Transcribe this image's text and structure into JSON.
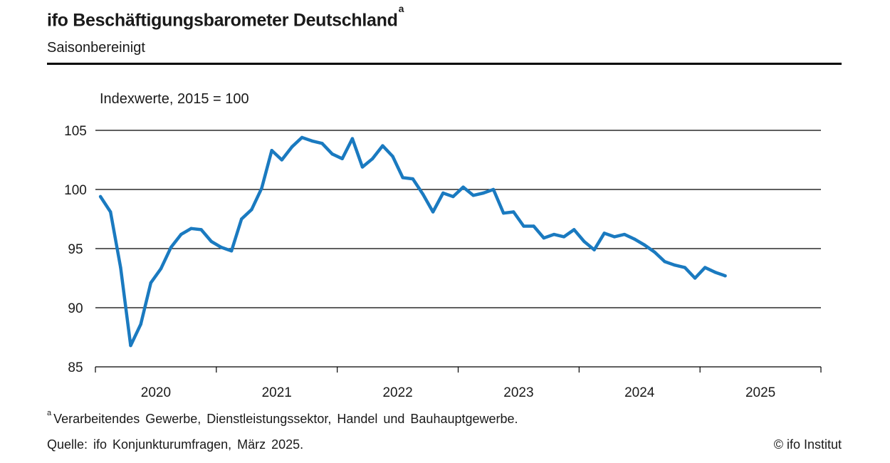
{
  "header": {
    "title": "ifo Beschäftigungsbarometer Deutschland",
    "title_marker": "a",
    "subtitle": "Saisonbereinigt"
  },
  "footer": {
    "footnote_marker": "a",
    "footnote": "Verarbeitendes Gewerbe, Dienstleistungssektor, Handel und Bauhauptgewerbe.",
    "source": "Quelle: ifo Konjunkturumfragen, März 2025.",
    "copyright": "© ifo Institut"
  },
  "colors": {
    "line": "#1a7ac0",
    "grid": "#000000",
    "text": "#1a1a1a"
  },
  "chart_data": {
    "type": "line",
    "unit_label": "Indexwerte, 2015 = 100",
    "ylim": [
      85,
      105
    ],
    "yticks": [
      85,
      90,
      95,
      100,
      105
    ],
    "grid": true,
    "x_start": "2020-01",
    "x_end_exclusive": "2026-01",
    "year_labels": [
      "2020",
      "2021",
      "2022",
      "2023",
      "2024",
      "2025"
    ],
    "series": [
      {
        "x": [
          "2020-01",
          "2020-02",
          "2020-03",
          "2020-04",
          "2020-05",
          "2020-06",
          "2020-07",
          "2020-08",
          "2020-09",
          "2020-10",
          "2020-11",
          "2020-12",
          "2021-01",
          "2021-02",
          "2021-03",
          "2021-04",
          "2021-05",
          "2021-06",
          "2021-07",
          "2021-08",
          "2021-09",
          "2021-10",
          "2021-11",
          "2021-12",
          "2022-01",
          "2022-02",
          "2022-03",
          "2022-04",
          "2022-05",
          "2022-06",
          "2022-07",
          "2022-08",
          "2022-09",
          "2022-10",
          "2022-11",
          "2022-12",
          "2023-01",
          "2023-02",
          "2023-03",
          "2023-04",
          "2023-05",
          "2023-06",
          "2023-07",
          "2023-08",
          "2023-09",
          "2023-10",
          "2023-11",
          "2023-12",
          "2024-01",
          "2024-02",
          "2024-03",
          "2024-04",
          "2024-05",
          "2024-06",
          "2024-07",
          "2024-08",
          "2024-09",
          "2024-10",
          "2024-11",
          "2024-12",
          "2025-01",
          "2025-02",
          "2025-03"
        ],
        "values": [
          99.4,
          98.1,
          93.4,
          86.8,
          88.6,
          92.1,
          93.3,
          95.1,
          96.2,
          96.7,
          96.6,
          95.6,
          95.1,
          94.8,
          97.5,
          98.3,
          100.1,
          103.3,
          102.5,
          103.6,
          104.4,
          104.1,
          103.9,
          103.0,
          102.6,
          104.3,
          101.9,
          102.6,
          103.7,
          102.8,
          101.0,
          100.9,
          99.6,
          98.1,
          99.7,
          99.4,
          100.2,
          99.5,
          99.7,
          100.0,
          98.0,
          98.1,
          96.9,
          96.9,
          95.9,
          96.2,
          96.0,
          96.6,
          95.6,
          94.9,
          96.3,
          96.0,
          96.2,
          95.8,
          95.3,
          94.7,
          93.9,
          93.6,
          93.4,
          92.5,
          93.4,
          93.0,
          92.7
        ]
      }
    ]
  }
}
